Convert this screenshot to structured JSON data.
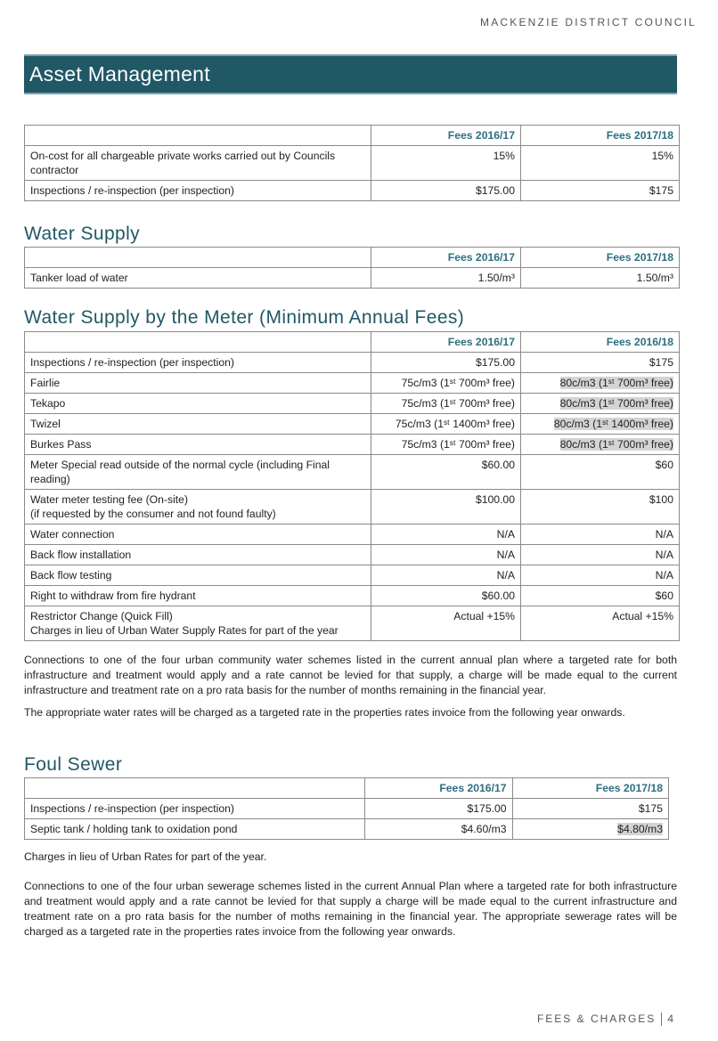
{
  "header": {
    "organisation": "MACKENZIE DISTRICT COUNCIL"
  },
  "banner": {
    "title": "Asset Management"
  },
  "asset_table": {
    "headers": [
      "",
      "Fees 2016/17",
      "Fees 2017/18"
    ],
    "rows": [
      [
        "On-cost for all chargeable private works carried out by Councils contractor",
        "15%",
        "15%"
      ],
      [
        "Inspections / re-inspection (per inspection)",
        "$175.00",
        "$175"
      ]
    ]
  },
  "water_supply": {
    "title": "Water Supply",
    "headers": [
      "",
      "Fees 2016/17",
      "Fees 2017/18"
    ],
    "rows": [
      [
        "Tanker load of water",
        "1.50/m³",
        "1.50/m³"
      ]
    ]
  },
  "water_meter": {
    "title": "Water Supply by the Meter (Minimum Annual Fees)",
    "headers": [
      "",
      "Fees 2016/17",
      "Fees 2016/18"
    ],
    "rows": [
      [
        "Inspections / re-inspection (per inspection)",
        "$175.00",
        "$175"
      ],
      [
        "Fairlie",
        "75c/m3 (1ˢᵗ 700m³ free)",
        "80c/m3 (1ˢᵗ 700m³ free)"
      ],
      [
        "Tekapo",
        "75c/m3 (1ˢᵗ 700m³ free)",
        "80c/m3 (1ˢᵗ 700m³ free)"
      ],
      [
        "Twizel",
        "75c/m3 (1ˢᵗ 1400m³ free)",
        "80c/m3 (1ˢᵗ 1400m³ free)"
      ],
      [
        "Burkes Pass",
        "75c/m3 (1ˢᵗ 700m³ free)",
        "80c/m3 (1ˢᵗ 700m³ free)"
      ],
      [
        "Meter Special read outside of the normal cycle (including Final reading)",
        "$60.00",
        "$60"
      ],
      [
        "Water meter testing fee (On-site)\n(if requested by the consumer and not found faulty)",
        "$100.00",
        "$100"
      ],
      [
        "Water connection",
        "N/A",
        "N/A"
      ],
      [
        "Back flow installation",
        "N/A",
        "N/A"
      ],
      [
        "Back flow testing",
        "N/A",
        "N/A"
      ],
      [
        "Right to withdraw from fire hydrant",
        "$60.00",
        "$60"
      ],
      [
        "Restrictor Change (Quick Fill)\nCharges in lieu of Urban Water Supply Rates for part of the year",
        "Actual +15%",
        "Actual +15%"
      ]
    ],
    "highlighted_rows": [
      1,
      2,
      3,
      4
    ],
    "highlight_color": "#d4d4d4"
  },
  "water_notes": [
    "Connections to one of the four urban community water schemes listed in the current annual plan where a targeted rate for both infrastructure and treatment would apply and a rate cannot be levied for that supply, a charge will be made equal to the current infrastructure and treatment rate on a pro rata basis for the number of months remaining in the financial year.",
    "The appropriate water rates will be charged as a targeted rate in the properties rates invoice from the following year onwards."
  ],
  "foul_sewer": {
    "title": "Foul Sewer",
    "headers": [
      "",
      "Fees 2016/17",
      "Fees 2017/18"
    ],
    "rows": [
      [
        "Inspections / re-inspection (per inspection)",
        "$175.00",
        "$175"
      ],
      [
        "Septic tank / holding tank to oxidation pond",
        "$4.60/m3",
        "$4.80/m3"
      ]
    ],
    "highlighted_rows": [
      1
    ]
  },
  "sewer_notes": [
    "Charges in lieu of Urban Rates for part of the year.",
    "Connections to one of the four urban sewerage schemes listed in the current Annual Plan where a targeted rate for both infrastructure and treatment would apply and a rate cannot be levied for that supply a charge will be made equal to the current infrastructure and treatment rate on a pro rata basis for the number of moths remaining in the financial year.  The appropriate sewerage rates will be charged as a targeted rate in the properties rates invoice from the following year onwards."
  ],
  "footer": {
    "section": "FEES & CHARGES",
    "page": "4"
  },
  "colors": {
    "brand": "#215866",
    "header_text": "#2e6f80"
  }
}
